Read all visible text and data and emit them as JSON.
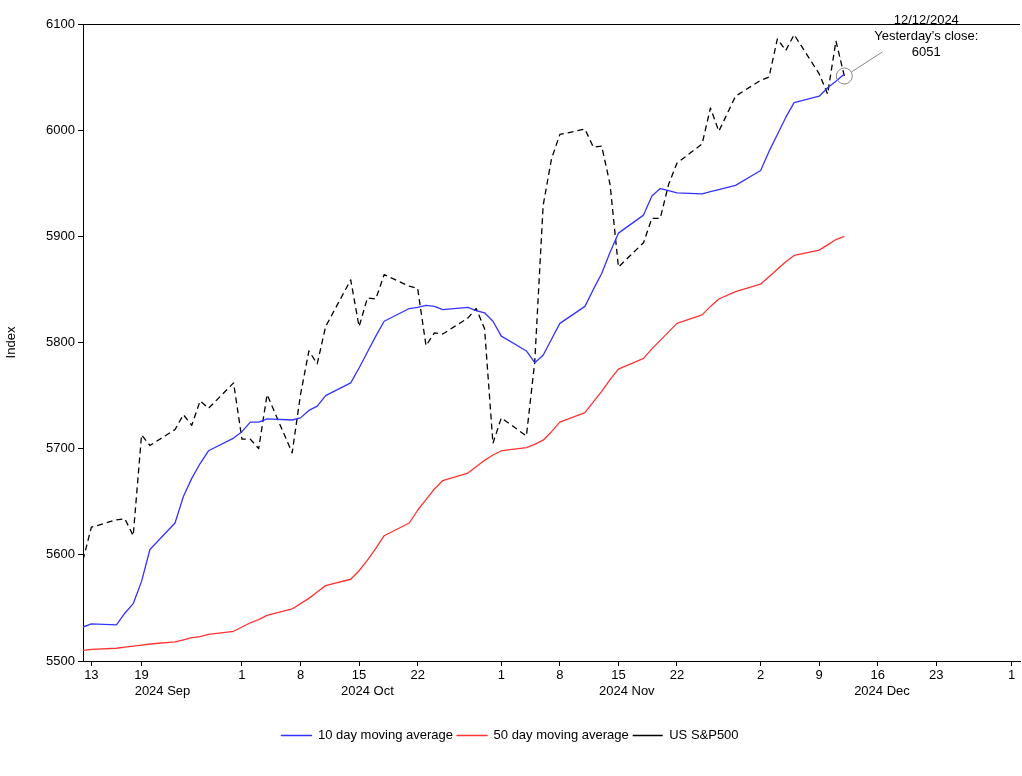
{
  "chart_data": {
    "type": "line",
    "ylabel": "Index",
    "legend": "bottom",
    "marker": "none",
    "x": [
      "2024-09-12",
      "2024-09-13",
      "2024-09-16",
      "2024-09-17",
      "2024-09-18",
      "2024-09-19",
      "2024-09-20",
      "2024-09-23",
      "2024-09-24",
      "2024-09-25",
      "2024-09-26",
      "2024-09-27",
      "2024-09-30",
      "2024-10-01",
      "2024-10-02",
      "2024-10-03",
      "2024-10-04",
      "2024-10-07",
      "2024-10-08",
      "2024-10-09",
      "2024-10-10",
      "2024-10-11",
      "2024-10-14",
      "2024-10-15",
      "2024-10-16",
      "2024-10-17",
      "2024-10-18",
      "2024-10-21",
      "2024-10-22",
      "2024-10-23",
      "2024-10-24",
      "2024-10-25",
      "2024-10-28",
      "2024-10-29",
      "2024-10-30",
      "2024-10-31",
      "2024-11-01",
      "2024-11-04",
      "2024-11-05",
      "2024-11-06",
      "2024-11-07",
      "2024-11-08",
      "2024-11-11",
      "2024-11-12",
      "2024-11-13",
      "2024-11-14",
      "2024-11-15",
      "2024-11-18",
      "2024-11-19",
      "2024-11-20",
      "2024-11-21",
      "2024-11-22",
      "2024-11-25",
      "2024-11-26",
      "2024-11-27",
      "2024-11-29",
      "2024-12-02",
      "2024-12-03",
      "2024-12-04",
      "2024-12-05",
      "2024-12-06",
      "2024-12-09",
      "2024-12-10",
      "2024-12-11",
      "2024-12-12"
    ],
    "xlim": [
      "2024-09-12",
      "2025-01-02"
    ],
    "xticks": [
      {
        "value": "2024-09-13",
        "label": "13"
      },
      {
        "value": "2024-09-19",
        "label": "19"
      },
      {
        "value": "2024-10-01",
        "label": "1"
      },
      {
        "value": "2024-10-08",
        "label": "8"
      },
      {
        "value": "2024-10-15",
        "label": "15"
      },
      {
        "value": "2024-10-22",
        "label": "22"
      },
      {
        "value": "2024-11-01",
        "label": "1"
      },
      {
        "value": "2024-11-08",
        "label": "8"
      },
      {
        "value": "2024-11-15",
        "label": "15"
      },
      {
        "value": "2024-11-22",
        "label": "22"
      },
      {
        "value": "2024-12-02",
        "label": "2"
      },
      {
        "value": "2024-12-09",
        "label": "9"
      },
      {
        "value": "2024-12-16",
        "label": "16"
      },
      {
        "value": "2024-12-23",
        "label": "23"
      },
      {
        "value": "2025-01-01",
        "label": "1"
      }
    ],
    "ylim": [
      5500,
      6100
    ],
    "yticks": [
      5500,
      5600,
      5700,
      5800,
      5900,
      6000,
      6100
    ],
    "series": [
      {
        "name": "10 day moving average",
        "color": "#3333ff",
        "line_style": "solid",
        "values": [
          5532,
          5535,
          5534,
          5545,
          5554,
          5575,
          5605,
          5630,
          5655,
          5672,
          5686,
          5698,
          5710,
          5716,
          5725,
          5725,
          5728,
          5727,
          5729,
          5736,
          5740,
          5750,
          5762,
          5776,
          5791,
          5806,
          5820,
          5832,
          5833,
          5835,
          5834,
          5831,
          5833,
          5830,
          5828,
          5820,
          5806,
          5792,
          5781,
          5788,
          5803,
          5818,
          5834,
          5850,
          5865,
          5885,
          5903,
          5920,
          5938,
          5945,
          5943,
          5941,
          5940,
          5942,
          5944,
          5948,
          5962,
          5980,
          5996,
          6012,
          6026,
          6032,
          6040,
          6046,
          6053
        ]
      },
      {
        "name": "50 day moving average",
        "color": "#ff3333",
        "line_style": "solid",
        "values": [
          5510,
          5511,
          5512,
          5513,
          5514,
          5515,
          5516,
          5518,
          5520,
          5522,
          5523,
          5525,
          5528,
          5532,
          5536,
          5539,
          5543,
          5549,
          5554,
          5559,
          5565,
          5571,
          5577,
          5585,
          5595,
          5606,
          5618,
          5630,
          5642,
          5652,
          5662,
          5670,
          5677,
          5683,
          5689,
          5694,
          5698,
          5701,
          5704,
          5708,
          5716,
          5725,
          5734,
          5744,
          5754,
          5765,
          5775,
          5785,
          5794,
          5802,
          5810,
          5818,
          5826,
          5834,
          5841,
          5848,
          5855,
          5862,
          5869,
          5876,
          5882,
          5887,
          5892,
          5897,
          5900
        ]
      },
      {
        "name": "US S&P500",
        "color": "#000000",
        "line_style": "dashed",
        "values": [
          5595,
          5626,
          5633,
          5634,
          5618,
          5713,
          5703,
          5718,
          5732,
          5722,
          5745,
          5738,
          5762,
          5709,
          5709,
          5700,
          5751,
          5696,
          5751,
          5792,
          5780,
          5815,
          5859,
          5815,
          5842,
          5841,
          5864,
          5853,
          5851,
          5797,
          5809,
          5808,
          5823,
          5832,
          5813,
          5705,
          5729,
          5712,
          5782,
          5929,
          5973,
          5996,
          6001,
          5984,
          5985,
          5949,
          5871,
          5894,
          5917,
          5917,
          5949,
          5969,
          5987,
          6021,
          5999,
          6032,
          6047,
          6050,
          6086,
          6075,
          6090,
          6053,
          6034,
          6084,
          6051
        ]
      }
    ],
    "annotations": [
      "2024 Sep",
      "2024 Oct",
      "2024 Nov",
      "2024 Dec",
      {
        "text": "12/12/2024\nYesterday’s close:\n6051",
        "x": "2024-12-12",
        "y": 6051
      }
    ]
  }
}
